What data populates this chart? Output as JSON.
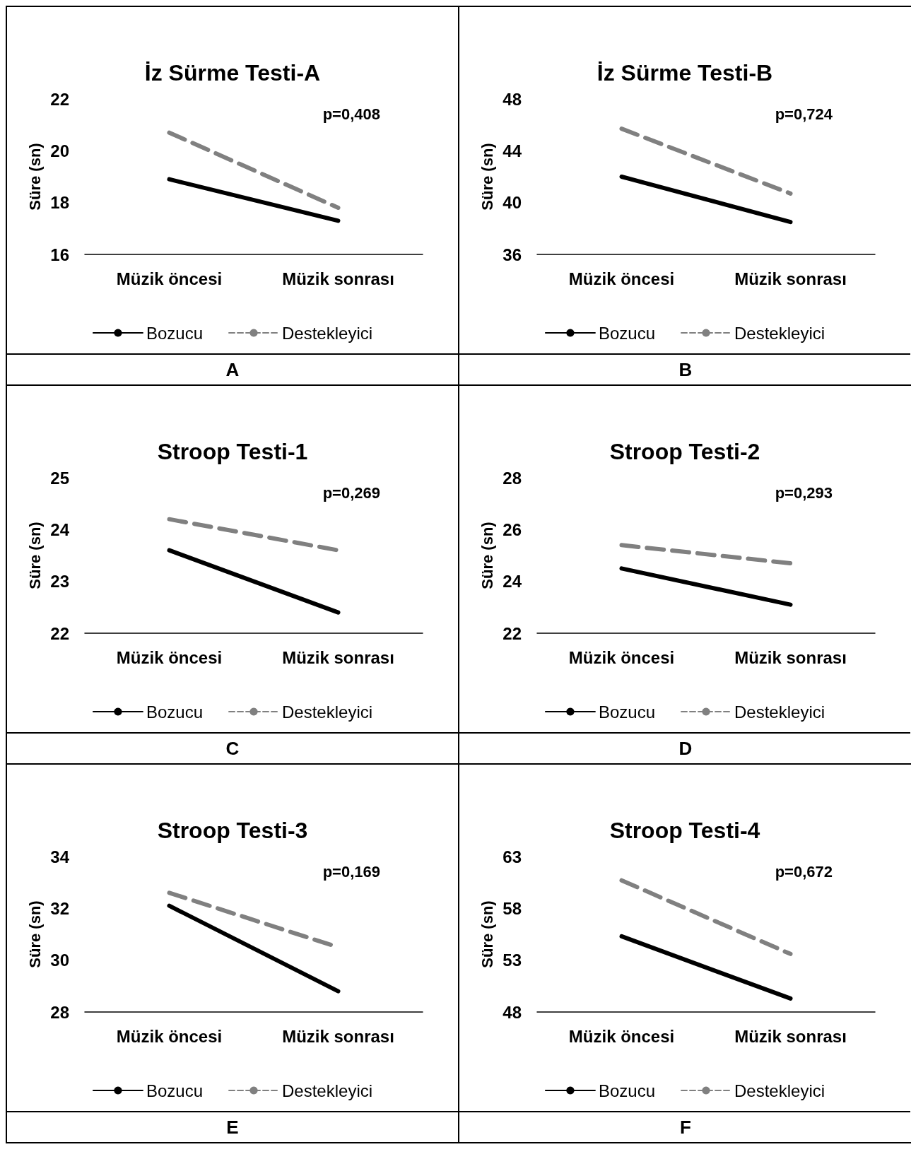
{
  "chart_data": [
    {
      "type": "line",
      "title": "İz Sürme Testi-A",
      "ylabel": "Süre (sn)",
      "categories": [
        "Müzik öncesi",
        "Müzik sonrası"
      ],
      "ylim": [
        16,
        22
      ],
      "yticks": [
        16,
        18,
        20,
        22
      ],
      "grid": false,
      "legend": "bottom",
      "marker": "none",
      "annotations": [
        "p=0,408",
        "A"
      ],
      "series": [
        {
          "name": "Bozucu",
          "color": "#000000",
          "line_style": "solid",
          "values": [
            18.9,
            17.3
          ]
        },
        {
          "name": "Destekleyici",
          "color": "#808080",
          "line_style": "dashed",
          "values": [
            20.7,
            17.8
          ]
        }
      ]
    },
    {
      "type": "line",
      "title": "İz Sürme Testi-B",
      "ylabel": "Süre (sn)",
      "categories": [
        "Müzik öncesi",
        "Müzik sonrası"
      ],
      "ylim": [
        36,
        48
      ],
      "yticks": [
        36,
        40,
        44,
        48
      ],
      "grid": false,
      "legend": "bottom",
      "marker": "none",
      "annotations": [
        "p=0,724",
        "B"
      ],
      "series": [
        {
          "name": "Bozucu",
          "color": "#000000",
          "line_style": "solid",
          "values": [
            42.0,
            38.5
          ]
        },
        {
          "name": "Destekleyici",
          "color": "#808080",
          "line_style": "dashed",
          "values": [
            45.7,
            40.7
          ]
        }
      ]
    },
    {
      "type": "line",
      "title": "Stroop Testi-1",
      "ylabel": "Süre (sn)",
      "categories": [
        "Müzik öncesi",
        "Müzik sonrası"
      ],
      "ylim": [
        22,
        25
      ],
      "yticks": [
        22,
        23,
        24,
        25
      ],
      "grid": false,
      "legend": "bottom",
      "marker": "none",
      "annotations": [
        "p=0,269",
        "C"
      ],
      "series": [
        {
          "name": "Bozucu",
          "color": "#000000",
          "line_style": "solid",
          "values": [
            23.6,
            22.4
          ]
        },
        {
          "name": "Destekleyici",
          "color": "#808080",
          "line_style": "dashed",
          "values": [
            24.2,
            23.6
          ]
        }
      ]
    },
    {
      "type": "line",
      "title": "Stroop Testi-2",
      "ylabel": "Süre (sn)",
      "categories": [
        "Müzik öncesi",
        "Müzik sonrası"
      ],
      "ylim": [
        22,
        28
      ],
      "yticks": [
        22,
        24,
        26,
        28
      ],
      "grid": false,
      "legend": "bottom",
      "marker": "none",
      "annotations": [
        "p=0,293",
        "D"
      ],
      "series": [
        {
          "name": "Bozucu",
          "color": "#000000",
          "line_style": "solid",
          "values": [
            24.5,
            23.1
          ]
        },
        {
          "name": "Destekleyici",
          "color": "#808080",
          "line_style": "dashed",
          "values": [
            25.4,
            24.7
          ]
        }
      ]
    },
    {
      "type": "line",
      "title": "Stroop Testi-3",
      "ylabel": "Süre (sn)",
      "categories": [
        "Müzik öncesi",
        "Müzik sonrası"
      ],
      "ylim": [
        28,
        34
      ],
      "yticks": [
        28,
        30,
        32,
        34
      ],
      "grid": false,
      "legend": "bottom",
      "marker": "none",
      "annotations": [
        "p=0,169",
        "E"
      ],
      "series": [
        {
          "name": "Bozucu",
          "color": "#000000",
          "line_style": "solid",
          "values": [
            32.1,
            28.8
          ]
        },
        {
          "name": "Destekleyici",
          "color": "#808080",
          "line_style": "dashed",
          "values": [
            32.6,
            30.5
          ]
        }
      ]
    },
    {
      "type": "line",
      "title": "Stroop Testi-4",
      "ylabel": "Süre (sn)",
      "categories": [
        "Müzik öncesi",
        "Müzik sonrası"
      ],
      "ylim": [
        48,
        63
      ],
      "yticks": [
        48,
        53,
        58,
        63
      ],
      "grid": false,
      "legend": "bottom",
      "marker": "none",
      "annotations": [
        "p=0,672",
        "F"
      ],
      "series": [
        {
          "name": "Bozucu",
          "color": "#000000",
          "line_style": "solid",
          "values": [
            55.3,
            49.3
          ]
        },
        {
          "name": "Destekleyici",
          "color": "#808080",
          "line_style": "dashed",
          "values": [
            60.7,
            53.6
          ]
        }
      ]
    }
  ]
}
